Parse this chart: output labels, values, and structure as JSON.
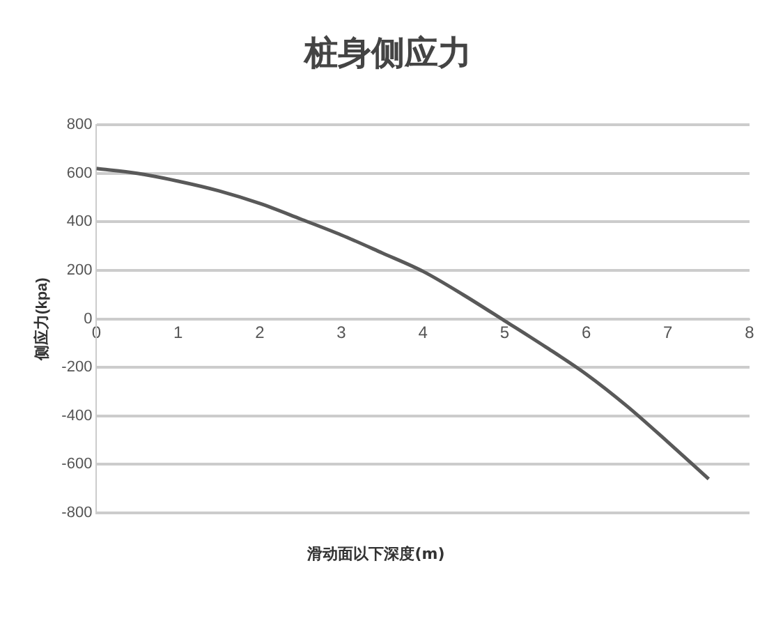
{
  "chart_data": {
    "type": "line",
    "title": "桩身侧应力",
    "xlabel": "滑动面以下深度(m)",
    "ylabel": "侧应力(kpa)",
    "x": [
      0,
      0.5,
      1,
      1.5,
      2,
      2.5,
      3,
      3.5,
      4,
      4.5,
      5,
      5.5,
      6,
      6.5,
      7,
      7.5
    ],
    "series": [
      {
        "color": "#595959",
        "values": [
          620,
          600,
          568,
          528,
          476,
          412,
          346,
          272,
          196,
          98,
          -8,
          -115,
          -228,
          -360,
          -508,
          -660
        ]
      }
    ],
    "xlim": [
      0,
      8
    ],
    "xticks": [
      0,
      1,
      2,
      3,
      4,
      5,
      6,
      7,
      8
    ],
    "ylim": [
      -800,
      800
    ],
    "yticks": [
      -800,
      -600,
      -400,
      -200,
      0,
      200,
      400,
      600,
      800
    ],
    "grid": "y",
    "legend": false,
    "marker": "none",
    "line_style": "solid"
  }
}
